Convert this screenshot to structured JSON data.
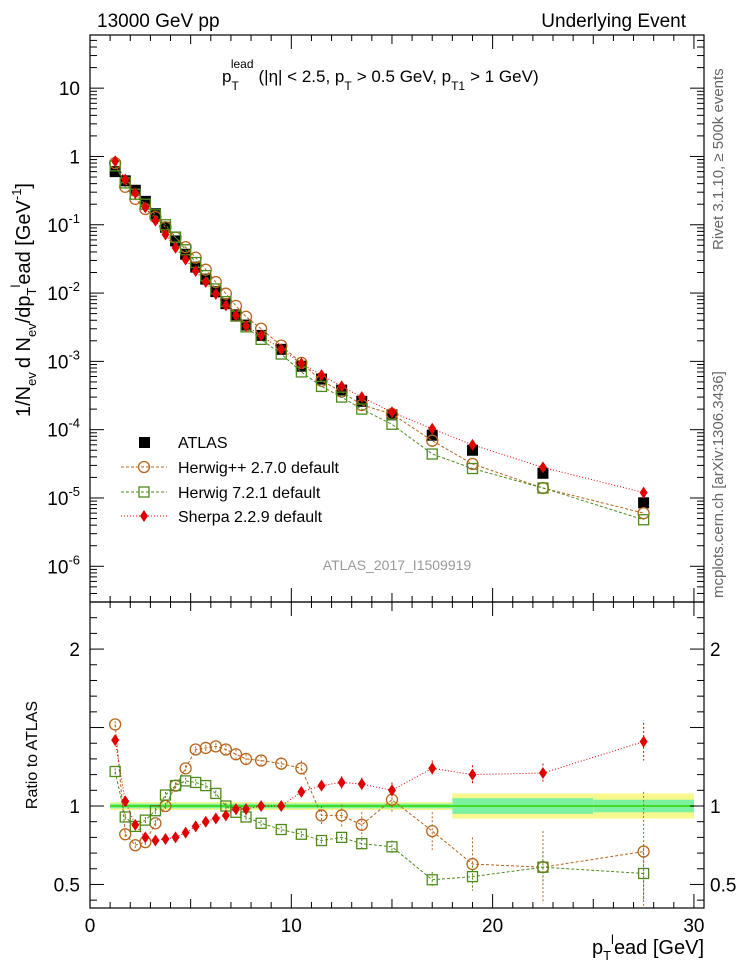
{
  "header": {
    "left": "13000 GeV pp",
    "right": "Underlying Event"
  },
  "side_labels": {
    "rivet": "Rivet 3.1.10, ≥ 500k events",
    "mcplots": "mcplots.cern.ch [arXiv:1306.3436]"
  },
  "watermark": "ATLAS_2017_I1509919",
  "colors": {
    "atlas": "#000000",
    "herwigpp": "#b8651b",
    "herwig7": "#4e8a1c",
    "sherpa": "#e00000",
    "band_inner": "#7ef0a2",
    "band_outer": "#f7f98e",
    "ref_line": "#44dd22"
  },
  "chart_data": [
    {
      "type": "scatter",
      "title": "p_T^lead (|η| < 2.5, p_T > 0.5 GeV, p_T1 > 1 GeV)",
      "title_parts": {
        "p": "p",
        "T": "T",
        "lead": "lead",
        "rest": "(|η| < 2.5, p",
        "gt05": "> 0.5 GeV, p",
        "T1": "T1",
        "gt1": "> 1 GeV)"
      },
      "ylabel": "1/N_ev d N_ev/dp_T^lead [GeV^-1]",
      "ylabel_parts": {
        "a": "1/N",
        "ev": "ev",
        "b": "d N",
        "c": "/dp",
        "T": "T",
        "l": "l",
        "ead": "ead [GeV",
        "exp": "-1",
        "close": "]"
      },
      "yscale": "log",
      "ylim": [
        3e-07,
        60
      ],
      "xlim": [
        0,
        30.5
      ],
      "yticks": [
        {
          "value": 1e-06,
          "label": "10",
          "exp": "-6"
        },
        {
          "value": 1e-05,
          "label": "10",
          "exp": "-5"
        },
        {
          "value": 0.0001,
          "label": "10",
          "exp": "-4"
        },
        {
          "value": 0.001,
          "label": "10",
          "exp": "-3"
        },
        {
          "value": 0.01,
          "label": "10",
          "exp": "-2"
        },
        {
          "value": 0.1,
          "label": "10",
          "exp": "-1"
        },
        {
          "value": 1,
          "label": "1",
          "exp": ""
        },
        {
          "value": 10,
          "label": "10",
          "exp": ""
        }
      ],
      "legend": [
        {
          "key": "atlas",
          "label": "ATLAS"
        },
        {
          "key": "herwigpp",
          "label": "Herwig++ 2.7.0 default"
        },
        {
          "key": "herwig7",
          "label": "Herwig 7.2.1 default"
        },
        {
          "key": "sherpa",
          "label": "Sherpa 2.2.9 default"
        }
      ],
      "x": [
        1.25,
        1.75,
        2.25,
        2.75,
        3.25,
        3.75,
        4.25,
        4.75,
        5.25,
        5.75,
        6.25,
        6.75,
        7.25,
        7.75,
        8.5,
        9.5,
        10.5,
        11.5,
        12.5,
        13.5,
        15.0,
        17.0,
        19.0,
        22.5,
        27.5
      ],
      "series": [
        {
          "name": "ATLAS",
          "key": "atlas",
          "values": [
            0.6,
            0.44,
            0.32,
            0.22,
            0.145,
            0.092,
            0.058,
            0.037,
            0.024,
            0.016,
            0.0105,
            0.007,
            0.0048,
            0.0034,
            0.0024,
            0.0015,
            0.00085,
            0.00055,
            0.00038,
            0.00026,
            0.000165,
            8.3e-05,
            5e-05,
            2.3e-05,
            8.5e-06
          ]
        },
        {
          "name": "Herwig++ 2.7.0 default",
          "key": "herwigpp",
          "values": [
            0.8,
            0.36,
            0.24,
            0.17,
            0.13,
            0.092,
            0.065,
            0.047,
            0.033,
            0.022,
            0.0145,
            0.0098,
            0.0065,
            0.0045,
            0.003,
            0.0017,
            0.00095,
            0.00052,
            0.00036,
            0.00023,
            0.00017,
            6.9e-05,
            3.15e-05,
            1.4e-05,
            6e-06
          ]
        },
        {
          "name": "Herwig 7.2.1 default",
          "key": "herwig7",
          "values": [
            0.73,
            0.41,
            0.28,
            0.2,
            0.14,
            0.1,
            0.066,
            0.043,
            0.028,
            0.018,
            0.0115,
            0.0075,
            0.0046,
            0.0032,
            0.0021,
            0.00128,
            0.0007,
            0.00043,
            0.0003,
            0.0002,
            0.00012,
            4.4e-05,
            2.7e-05,
            1.4e-05,
            4.8e-06
          ]
        },
        {
          "name": "Sherpa 2.2.9 default",
          "key": "sherpa",
          "values": [
            0.85,
            0.46,
            0.29,
            0.18,
            0.115,
            0.072,
            0.046,
            0.031,
            0.021,
            0.0145,
            0.0097,
            0.0066,
            0.0047,
            0.0033,
            0.0024,
            0.0015,
            0.00093,
            0.00063,
            0.00043,
            0.0003,
            0.00018,
            0.000103,
            6e-05,
            2.8e-05,
            1.2e-05
          ]
        }
      ]
    },
    {
      "type": "scatter",
      "ylabel": "Ratio to ATLAS",
      "xlabel": "p_T^lead [GeV]",
      "xlabel_parts": {
        "p": "p",
        "T": "T",
        "l": "l",
        "ead": "ead [GeV]"
      },
      "xlim": [
        0,
        30.5
      ],
      "ylim": [
        0.35,
        2.3
      ],
      "xticks": [
        {
          "value": 0,
          "label": "0"
        },
        {
          "value": 10,
          "label": "10"
        },
        {
          "value": 20,
          "label": "20"
        },
        {
          "value": 30,
          "label": "30"
        }
      ],
      "yticks": [
        {
          "value": 0.5,
          "label": "0.5"
        },
        {
          "value": 1,
          "label": "1"
        },
        {
          "value": 2,
          "label": "2"
        }
      ],
      "bands": [
        {
          "x0": 1.0,
          "x1": 18.0,
          "inner": [
            0.985,
            1.015
          ],
          "outer": [
            0.975,
            1.025
          ]
        },
        {
          "x0": 18.0,
          "x1": 25.0,
          "inner": [
            0.95,
            1.05
          ],
          "outer": [
            0.92,
            1.08
          ]
        },
        {
          "x0": 25.0,
          "x1": 30.0,
          "inner": [
            0.96,
            1.04
          ],
          "outer": [
            0.92,
            1.08
          ]
        }
      ],
      "series": [
        {
          "name": "Herwig++ 2.7.0 default",
          "key": "herwigpp",
          "x": [
            1.25,
            1.75,
            2.25,
            2.75,
            3.25,
            3.75,
            4.25,
            4.75,
            5.25,
            5.75,
            6.25,
            6.75,
            7.25,
            7.75,
            8.5,
            9.5,
            10.5,
            11.5,
            12.5,
            13.5,
            15.0,
            17.0,
            19.0,
            22.5,
            27.5
          ],
          "values": [
            1.52,
            0.82,
            0.75,
            0.77,
            0.89,
            1.0,
            1.13,
            1.24,
            1.36,
            1.37,
            1.38,
            1.36,
            1.33,
            1.3,
            1.29,
            1.27,
            1.24,
            0.94,
            0.94,
            0.88,
            1.04,
            0.84,
            0.63,
            0.61,
            0.71
          ],
          "err": [
            0.02,
            0.02,
            0.02,
            0.02,
            0.02,
            0.02,
            0.02,
            0.02,
            0.02,
            0.02,
            0.02,
            0.03,
            0.03,
            0.03,
            0.03,
            0.04,
            0.05,
            0.06,
            0.07,
            0.08,
            0.09,
            0.12,
            0.17,
            0.23,
            0.38
          ]
        },
        {
          "name": "Herwig 7.2.1 default",
          "key": "herwig7",
          "x": [
            1.25,
            1.75,
            2.25,
            2.75,
            3.25,
            3.75,
            4.25,
            4.75,
            5.25,
            5.75,
            6.25,
            6.75,
            7.25,
            7.75,
            8.5,
            9.5,
            10.5,
            11.5,
            12.5,
            13.5,
            15.0,
            17.0,
            19.0,
            22.5,
            27.5
          ],
          "values": [
            1.22,
            0.93,
            0.87,
            0.91,
            0.97,
            1.07,
            1.13,
            1.16,
            1.15,
            1.13,
            1.08,
            1.0,
            0.96,
            0.93,
            0.89,
            0.85,
            0.82,
            0.78,
            0.8,
            0.76,
            0.74,
            0.53,
            0.55,
            0.61,
            0.57
          ],
          "err": [
            0.02,
            0.02,
            0.02,
            0.02,
            0.02,
            0.02,
            0.02,
            0.02,
            0.02,
            0.02,
            0.02,
            0.02,
            0.02,
            0.02,
            0.02,
            0.02,
            0.02,
            0.02,
            0.02,
            0.03,
            0.04,
            0.05,
            0.07,
            0.1,
            0.18
          ]
        },
        {
          "name": "Sherpa 2.2.9 default",
          "key": "sherpa",
          "x": [
            1.25,
            1.75,
            2.25,
            2.75,
            3.25,
            3.75,
            4.25,
            4.75,
            5.25,
            5.75,
            6.25,
            6.75,
            7.25,
            7.75,
            8.5,
            9.5,
            10.5,
            11.5,
            12.5,
            13.5,
            15.0,
            17.0,
            19.0,
            22.5,
            27.5
          ],
          "values": [
            1.42,
            1.03,
            0.88,
            0.8,
            0.78,
            0.79,
            0.8,
            0.83,
            0.87,
            0.9,
            0.92,
            0.94,
            0.98,
            0.98,
            1.0,
            1.0,
            1.09,
            1.13,
            1.15,
            1.14,
            1.1,
            1.24,
            1.2,
            1.21,
            1.41
          ],
          "err": [
            0.02,
            0.02,
            0.02,
            0.02,
            0.02,
            0.02,
            0.02,
            0.02,
            0.02,
            0.02,
            0.02,
            0.02,
            0.02,
            0.02,
            0.02,
            0.02,
            0.03,
            0.03,
            0.04,
            0.04,
            0.05,
            0.05,
            0.06,
            0.06,
            0.12
          ]
        }
      ]
    }
  ]
}
